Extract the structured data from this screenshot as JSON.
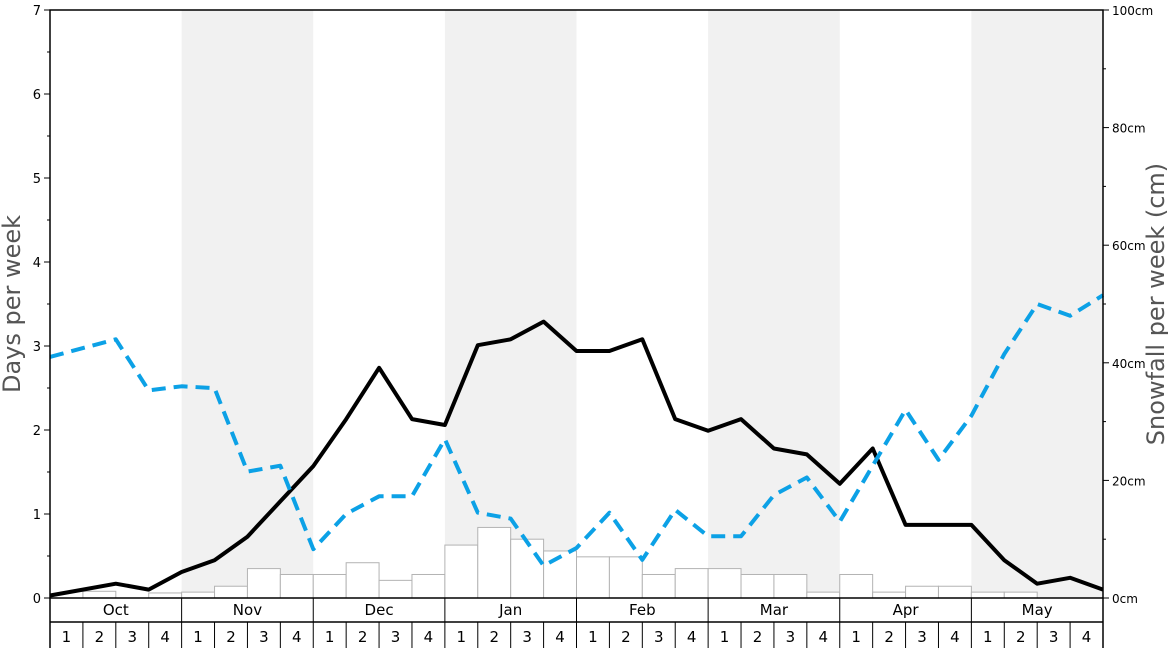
{
  "chart_data": {
    "type": "bar+line",
    "ylabel_left": "Days per week",
    "ylabel_right": "Snowfall per week (cm)",
    "yleft": {
      "min": 0,
      "max": 7,
      "ticks": [
        "0",
        "1",
        "2",
        "3",
        "4",
        "5",
        "6",
        "7"
      ]
    },
    "yright": {
      "min": 0,
      "max": 100,
      "ticks": [
        "0cm",
        "20cm",
        "40cm",
        "60cm",
        "80cm",
        "100cm"
      ]
    },
    "months": [
      "Oct",
      "Nov",
      "Dec",
      "Jan",
      "Feb",
      "Mar",
      "Apr",
      "May"
    ],
    "weeks": [
      "1",
      "2",
      "3",
      "4"
    ],
    "shaded_months": [
      "Nov",
      "Jan",
      "Mar",
      "May"
    ],
    "colors": {
      "bars_fill": "#ffffff",
      "bars_stroke": "#b3b3b3",
      "days_line": "#000000",
      "snowfall_line": "#0ca1e6",
      "shade": "#f1f1f1"
    },
    "series": [
      {
        "kind": "bars",
        "axis": "left",
        "values": [
          0.0,
          0.08,
          0.0,
          0.06,
          0.07,
          0.14,
          0.35,
          0.28,
          0.28,
          0.42,
          0.21,
          0.28,
          0.63,
          0.84,
          0.7,
          0.56,
          0.49,
          0.49,
          0.28,
          0.35,
          0.35,
          0.28,
          0.28,
          0.07,
          0.28,
          0.07,
          0.14,
          0.14,
          0.07,
          0.07,
          0.0,
          0.0
        ]
      },
      {
        "kind": "line",
        "style": "solid",
        "axis": "left",
        "values": [
          0.03,
          0.1,
          0.17,
          0.1,
          0.31,
          0.45,
          0.73,
          1.15,
          1.57,
          2.13,
          2.74,
          2.13,
          2.06,
          3.01,
          3.08,
          3.29,
          2.94,
          2.94,
          3.08,
          2.13,
          1.99,
          2.13,
          1.78,
          1.71,
          1.36,
          1.78,
          0.87,
          0.87,
          0.87,
          0.45,
          0.17,
          0.24,
          0.1
        ]
      },
      {
        "kind": "line",
        "style": "dashed",
        "axis": "right",
        "values": [
          41,
          42.5,
          44,
          35.3,
          36,
          35.7,
          21.5,
          22.5,
          8.3,
          14.3,
          17.3,
          17.3,
          27,
          14.5,
          13.5,
          5.5,
          8.5,
          14.5,
          6.5,
          15,
          10.5,
          10.5,
          17.5,
          20.5,
          13,
          22.5,
          32,
          23.5,
          31,
          41.5,
          50,
          48,
          51.5
        ]
      }
    ]
  }
}
